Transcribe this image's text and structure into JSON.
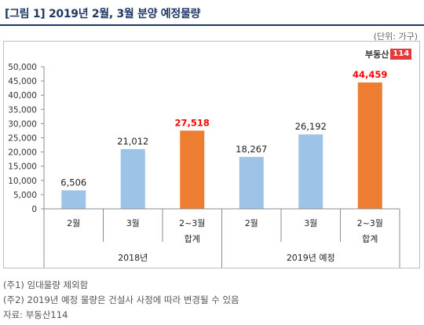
{
  "title": "[그림 1] 2019년 2월, 3월 분양 예정물량",
  "unit": "(단위: 가구)",
  "logo": {
    "text": "부동산",
    "num": "114"
  },
  "chart_data": {
    "type": "bar",
    "ylim": [
      0,
      50000
    ],
    "yticks": [
      0,
      5000,
      10000,
      15000,
      20000,
      25000,
      30000,
      35000,
      40000,
      45000,
      50000
    ],
    "ytick_labels": [
      "0",
      "5,000",
      "10,000",
      "15,000",
      "20,000",
      "25,000",
      "30,000",
      "35,000",
      "40,000",
      "45,000",
      "50,000"
    ],
    "categories": [
      {
        "label": [
          "2월"
        ],
        "value": 6506,
        "value_label": "6,506",
        "highlight": false
      },
      {
        "label": [
          "3월"
        ],
        "value": 21012,
        "value_label": "21,012",
        "highlight": false
      },
      {
        "label": [
          "2~3월",
          "합계"
        ],
        "value": 27518,
        "value_label": "27,518",
        "highlight": true
      },
      {
        "label": [
          "2월"
        ],
        "value": 18267,
        "value_label": "18,267",
        "highlight": false
      },
      {
        "label": [
          "3월"
        ],
        "value": 26192,
        "value_label": "26,192",
        "highlight": false
      },
      {
        "label": [
          "2~3월",
          "합계"
        ],
        "value": 44459,
        "value_label": "44,459",
        "highlight": true
      }
    ],
    "groups": [
      {
        "label": "2018년",
        "span": [
          0,
          2
        ]
      },
      {
        "label": "2019년 예정",
        "span": [
          3,
          5
        ]
      }
    ],
    "colors": {
      "normal": "#9dc3e6",
      "highlight": "#ed7d31",
      "highlight_label": "#ff0000"
    },
    "grid": false
  },
  "notes": [
    "(주1) 임대물량 제외함",
    "(주2) 2019년 예정 물량은 건설사 사정에 따라 변경될 수 있음",
    "자료: 부동산114"
  ]
}
